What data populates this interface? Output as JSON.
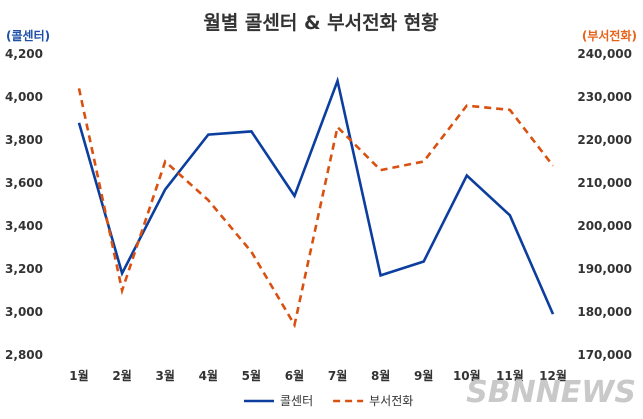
{
  "chart_data": {
    "type": "line",
    "title": "월별 콜센터 & 부서전화 현황",
    "categories": [
      "1월",
      "2월",
      "3월",
      "4월",
      "5월",
      "6월",
      "7월",
      "8월",
      "9월",
      "10월",
      "11월",
      "12월"
    ],
    "left_axis": {
      "label": "(콜센터)",
      "ylim": [
        2800,
        4200
      ],
      "ticks": [
        "2,800",
        "3,000",
        "3,200",
        "3,400",
        "3,600",
        "3,800",
        "4,000",
        "4,200"
      ],
      "color": "#1f4fa8"
    },
    "right_axis": {
      "label": "(부서전화)",
      "ylim": [
        170000,
        240000
      ],
      "ticks": [
        "170,000",
        "180,000",
        "190,000",
        "200,000",
        "210,000",
        "220,000",
        "230,000",
        "240,000"
      ],
      "color": "#e8631a"
    },
    "series": [
      {
        "name": "콜센터",
        "axis": "left",
        "style": "solid",
        "color": "#0b3e9e",
        "values": [
          3880,
          3180,
          3570,
          3825,
          3840,
          3540,
          4075,
          3170,
          3235,
          3635,
          3450,
          2990
        ]
      },
      {
        "name": "부서전화",
        "axis": "right",
        "style": "dashed",
        "color": "#d9500f",
        "values": [
          232000,
          185000,
          215000,
          206000,
          194000,
          177000,
          223000,
          213000,
          215000,
          228000,
          227000,
          214000
        ]
      }
    ],
    "grid": false,
    "legend": "bottom-center"
  },
  "watermark": "SBNNEWS"
}
